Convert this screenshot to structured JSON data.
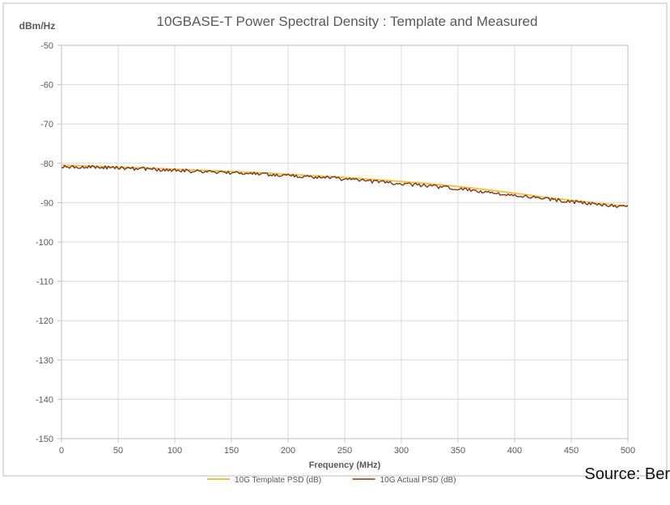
{
  "chart": {
    "type": "line",
    "title": "10GBASE-T Power Spectral Density : Template and Measured",
    "title_fontsize": 17,
    "title_color": "#595959",
    "ylabel_unit": "dBm/Hz",
    "ylabel_fontsize": 12,
    "xlabel": "Frequency (MHz)",
    "xlabel_fontsize": 11,
    "xlabel_weight": "bold",
    "background_color": "#ffffff",
    "border_color": "#bfbfbf",
    "grid_color": "#d9d9d9",
    "axis_line_color": "#bfbfbf",
    "tick_font_color": "#595959",
    "tick_fontsize": 11,
    "xlim": [
      0,
      500
    ],
    "ylim": [
      -150,
      -50
    ],
    "xtick_step": 50,
    "ytick_step": 10,
    "xticks": [
      0,
      50,
      100,
      150,
      200,
      250,
      300,
      350,
      400,
      450,
      500
    ],
    "yticks": [
      -50,
      -60,
      -70,
      -80,
      -90,
      -100,
      -110,
      -120,
      -130,
      -140,
      -150
    ],
    "legend": {
      "position": "bottom-center",
      "fontsize": 10,
      "color": "#595959",
      "items": [
        {
          "label": "10G Template PSD (dB)",
          "color": "#f3c04a",
          "width": 2
        },
        {
          "label": "10G Actual PSD (dB)",
          "color": "#7a3a1a",
          "width": 1.5
        }
      ]
    },
    "series": [
      {
        "name": "10G Template PSD (dB)",
        "color": "#f3c04a",
        "line_width": 2,
        "data": [
          [
            0,
            -80.5
          ],
          [
            25,
            -80.7
          ],
          [
            50,
            -81.0
          ],
          [
            75,
            -81.2
          ],
          [
            100,
            -81.5
          ],
          [
            125,
            -81.8
          ],
          [
            150,
            -82.1
          ],
          [
            175,
            -82.4
          ],
          [
            200,
            -82.8
          ],
          [
            225,
            -83.2
          ],
          [
            250,
            -83.6
          ],
          [
            275,
            -84.1
          ],
          [
            300,
            -84.6
          ],
          [
            325,
            -85.2
          ],
          [
            350,
            -85.9
          ],
          [
            375,
            -86.7
          ],
          [
            400,
            -87.6
          ],
          [
            425,
            -88.6
          ],
          [
            450,
            -89.4
          ],
          [
            475,
            -90.2
          ],
          [
            500,
            -91.0
          ]
        ]
      },
      {
        "name": "10G Actual PSD (dB)",
        "color": "#7a3a1a",
        "line_width": 1.4,
        "noise_amp": 0.45,
        "data": [
          [
            0,
            -80.8
          ],
          [
            25,
            -80.9
          ],
          [
            50,
            -81.2
          ],
          [
            75,
            -81.4
          ],
          [
            100,
            -81.8
          ],
          [
            125,
            -82.1
          ],
          [
            150,
            -82.4
          ],
          [
            175,
            -82.7
          ],
          [
            200,
            -83.1
          ],
          [
            225,
            -83.5
          ],
          [
            250,
            -84.0
          ],
          [
            275,
            -84.6
          ],
          [
            300,
            -85.2
          ],
          [
            325,
            -85.8
          ],
          [
            350,
            -86.5
          ],
          [
            375,
            -87.3
          ],
          [
            400,
            -88.2
          ],
          [
            425,
            -89.0
          ],
          [
            450,
            -89.7
          ],
          [
            475,
            -90.4
          ],
          [
            500,
            -91.0
          ]
        ]
      }
    ]
  },
  "source_text": "Source: Ber"
}
